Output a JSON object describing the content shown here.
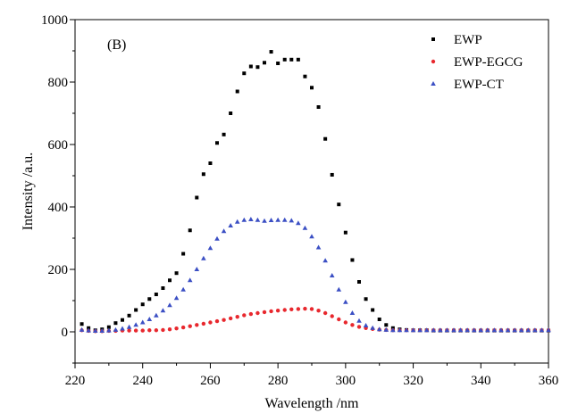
{
  "chart_data": {
    "type": "scatter",
    "panel_label": "(B)",
    "xlabel": "Wavelength /nm",
    "ylabel": "Intensity /a.u.",
    "xlim": [
      220,
      360
    ],
    "ylim": [
      -100,
      1000
    ],
    "x_ticks": [
      220,
      240,
      260,
      280,
      300,
      320,
      340,
      360
    ],
    "y_ticks": [
      0,
      200,
      400,
      600,
      800,
      1000
    ],
    "grid": false,
    "legend_position": "top-right",
    "series": [
      {
        "name": "EWP",
        "marker": "square",
        "color": "#000000",
        "points": [
          [
            222,
            25
          ],
          [
            224,
            12
          ],
          [
            226,
            5
          ],
          [
            228,
            8
          ],
          [
            230,
            15
          ],
          [
            232,
            28
          ],
          [
            234,
            38
          ],
          [
            236,
            52
          ],
          [
            238,
            70
          ],
          [
            240,
            88
          ],
          [
            242,
            105
          ],
          [
            244,
            120
          ],
          [
            246,
            140
          ],
          [
            248,
            165
          ],
          [
            250,
            188
          ],
          [
            252,
            250
          ],
          [
            254,
            325
          ],
          [
            256,
            430
          ],
          [
            258,
            505
          ],
          [
            260,
            540
          ],
          [
            262,
            605
          ],
          [
            264,
            632
          ],
          [
            266,
            700
          ],
          [
            268,
            770
          ],
          [
            270,
            828
          ],
          [
            272,
            850
          ],
          [
            274,
            848
          ],
          [
            276,
            862
          ],
          [
            278,
            897
          ],
          [
            280,
            860
          ],
          [
            282,
            872
          ],
          [
            284,
            872
          ],
          [
            286,
            872
          ],
          [
            288,
            818
          ],
          [
            290,
            782
          ],
          [
            292,
            720
          ],
          [
            294,
            618
          ],
          [
            296,
            503
          ],
          [
            298,
            408
          ],
          [
            300,
            318
          ],
          [
            302,
            230
          ],
          [
            304,
            160
          ],
          [
            306,
            105
          ],
          [
            308,
            70
          ],
          [
            310,
            40
          ],
          [
            312,
            22
          ],
          [
            314,
            12
          ],
          [
            316,
            8
          ],
          [
            318,
            6
          ],
          [
            320,
            5
          ],
          [
            322,
            5
          ],
          [
            324,
            5
          ],
          [
            326,
            4
          ],
          [
            328,
            4
          ],
          [
            330,
            4
          ],
          [
            332,
            4
          ],
          [
            334,
            4
          ],
          [
            336,
            4
          ],
          [
            338,
            4
          ],
          [
            340,
            4
          ],
          [
            342,
            4
          ],
          [
            344,
            4
          ],
          [
            346,
            4
          ],
          [
            348,
            4
          ],
          [
            350,
            4
          ],
          [
            352,
            4
          ],
          [
            354,
            4
          ],
          [
            356,
            4
          ],
          [
            358,
            4
          ],
          [
            360,
            4
          ]
        ]
      },
      {
        "name": "EWP-EGCG",
        "marker": "circle",
        "color": "#e8282e",
        "points": [
          [
            222,
            5
          ],
          [
            224,
            3
          ],
          [
            226,
            2
          ],
          [
            228,
            2
          ],
          [
            230,
            3
          ],
          [
            232,
            3
          ],
          [
            234,
            4
          ],
          [
            236,
            4
          ],
          [
            238,
            4
          ],
          [
            240,
            4
          ],
          [
            242,
            5
          ],
          [
            244,
            5
          ],
          [
            246,
            6
          ],
          [
            248,
            8
          ],
          [
            250,
            11
          ],
          [
            252,
            14
          ],
          [
            254,
            18
          ],
          [
            256,
            22
          ],
          [
            258,
            26
          ],
          [
            260,
            30
          ],
          [
            262,
            34
          ],
          [
            264,
            38
          ],
          [
            266,
            43
          ],
          [
            268,
            48
          ],
          [
            270,
            53
          ],
          [
            272,
            57
          ],
          [
            274,
            60
          ],
          [
            276,
            63
          ],
          [
            278,
            66
          ],
          [
            280,
            68
          ],
          [
            282,
            70
          ],
          [
            284,
            72
          ],
          [
            286,
            73
          ],
          [
            288,
            74
          ],
          [
            290,
            73
          ],
          [
            292,
            68
          ],
          [
            294,
            60
          ],
          [
            296,
            50
          ],
          [
            298,
            40
          ],
          [
            300,
            30
          ],
          [
            302,
            22
          ],
          [
            304,
            16
          ],
          [
            306,
            12
          ],
          [
            308,
            9
          ],
          [
            310,
            7
          ],
          [
            312,
            6
          ],
          [
            314,
            5
          ],
          [
            316,
            5
          ],
          [
            318,
            5
          ],
          [
            320,
            5
          ],
          [
            322,
            5
          ],
          [
            324,
            5
          ],
          [
            326,
            5
          ],
          [
            328,
            5
          ],
          [
            330,
            5
          ],
          [
            332,
            5
          ],
          [
            334,
            5
          ],
          [
            336,
            5
          ],
          [
            338,
            5
          ],
          [
            340,
            5
          ],
          [
            342,
            5
          ],
          [
            344,
            5
          ],
          [
            346,
            5
          ],
          [
            348,
            5
          ],
          [
            350,
            5
          ],
          [
            352,
            5
          ],
          [
            354,
            5
          ],
          [
            356,
            5
          ],
          [
            358,
            5
          ],
          [
            360,
            5
          ]
        ]
      },
      {
        "name": "EWP-CT",
        "marker": "triangle",
        "color": "#3b4fc4",
        "points": [
          [
            222,
            6
          ],
          [
            224,
            4
          ],
          [
            226,
            3
          ],
          [
            228,
            3
          ],
          [
            230,
            4
          ],
          [
            232,
            6
          ],
          [
            234,
            10
          ],
          [
            236,
            15
          ],
          [
            238,
            22
          ],
          [
            240,
            30
          ],
          [
            242,
            40
          ],
          [
            244,
            52
          ],
          [
            246,
            68
          ],
          [
            248,
            85
          ],
          [
            250,
            108
          ],
          [
            252,
            135
          ],
          [
            254,
            165
          ],
          [
            256,
            200
          ],
          [
            258,
            235
          ],
          [
            260,
            268
          ],
          [
            262,
            298
          ],
          [
            264,
            322
          ],
          [
            266,
            340
          ],
          [
            268,
            352
          ],
          [
            270,
            358
          ],
          [
            272,
            360
          ],
          [
            274,
            358
          ],
          [
            276,
            355
          ],
          [
            278,
            357
          ],
          [
            280,
            358
          ],
          [
            282,
            358
          ],
          [
            284,
            356
          ],
          [
            286,
            348
          ],
          [
            288,
            332
          ],
          [
            290,
            305
          ],
          [
            292,
            270
          ],
          [
            294,
            228
          ],
          [
            296,
            180
          ],
          [
            298,
            135
          ],
          [
            300,
            95
          ],
          [
            302,
            60
          ],
          [
            304,
            35
          ],
          [
            306,
            20
          ],
          [
            308,
            12
          ],
          [
            310,
            8
          ],
          [
            312,
            6
          ],
          [
            314,
            5
          ],
          [
            316,
            5
          ],
          [
            318,
            5
          ],
          [
            320,
            5
          ],
          [
            322,
            5
          ],
          [
            324,
            5
          ],
          [
            326,
            5
          ],
          [
            328,
            5
          ],
          [
            330,
            5
          ],
          [
            332,
            5
          ],
          [
            334,
            5
          ],
          [
            336,
            5
          ],
          [
            338,
            5
          ],
          [
            340,
            5
          ],
          [
            342,
            5
          ],
          [
            344,
            5
          ],
          [
            346,
            5
          ],
          [
            348,
            5
          ],
          [
            350,
            5
          ],
          [
            352,
            5
          ],
          [
            354,
            5
          ],
          [
            356,
            5
          ],
          [
            358,
            5
          ],
          [
            360,
            5
          ]
        ]
      }
    ]
  }
}
